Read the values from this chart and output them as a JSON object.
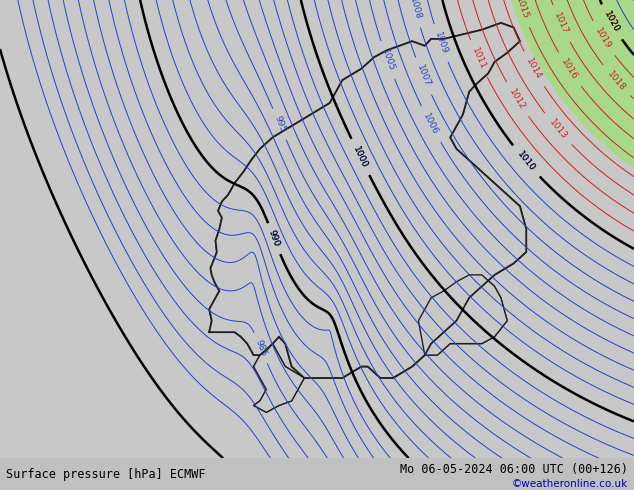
{
  "title_left": "Surface pressure [hPa] ECMWF",
  "title_right": "Mo 06-05-2024 06:00 UTC (00+126)",
  "copyright": "©weatheronline.co.uk",
  "bg_color": "#c8c8c8",
  "land_color": "#c8c8c8",
  "high_pressure_land_color": "#a8d888",
  "sea_color": "#c8c8c8",
  "figsize": [
    6.34,
    4.9
  ],
  "dpi": 100
}
